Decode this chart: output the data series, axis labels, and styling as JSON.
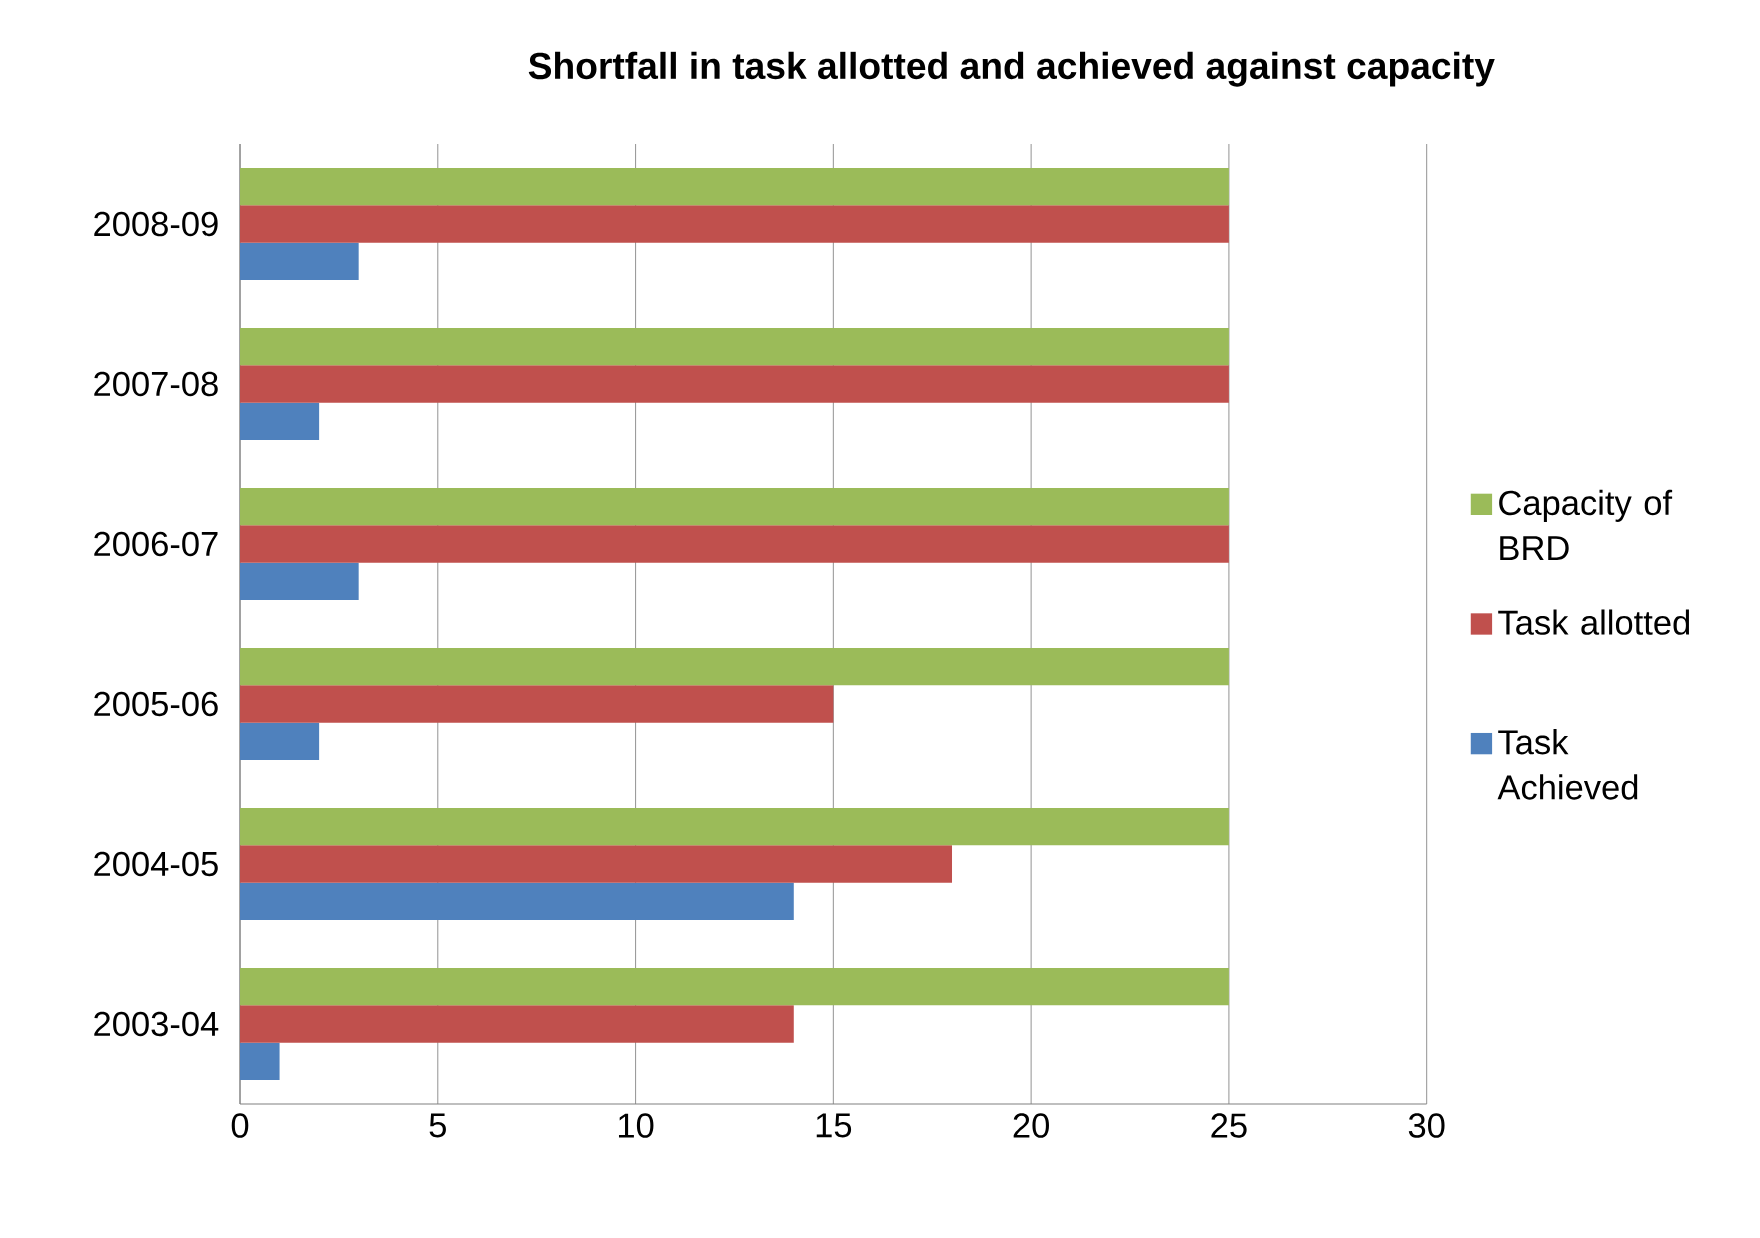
{
  "chart_data": {
    "type": "bar",
    "orientation": "horizontal",
    "title": "Shortfall in task allotted and achieved against capacity",
    "categories": [
      "2008-09",
      "2007-08",
      "2006-07",
      "2005-06",
      "2004-05",
      "2003-04"
    ],
    "series": [
      {
        "name": "Task Achieved",
        "color": "#4f81bd",
        "values": [
          3,
          2,
          3,
          2,
          14,
          1
        ]
      },
      {
        "name": "Task allotted",
        "color": "#c0504d",
        "values": [
          25,
          25,
          25,
          15,
          18,
          14
        ]
      },
      {
        "name": "Capacity of BRD",
        "color": "#9bbb59",
        "values": [
          25,
          25,
          25,
          25,
          25,
          25
        ]
      }
    ],
    "xlim": [
      0,
      30
    ],
    "xticks": [
      0,
      5,
      10,
      15,
      20,
      25,
      30
    ],
    "grid": "x",
    "legend": "right"
  }
}
